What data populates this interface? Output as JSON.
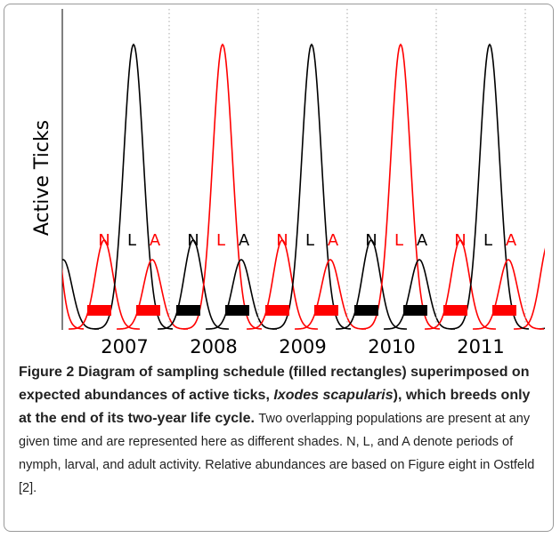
{
  "figure": {
    "y_label": "Active Ticks",
    "years": [
      {
        "year": "2007",
        "labels": [
          {
            "text": "N",
            "color": "#ff0000"
          },
          {
            "text": "L",
            "color": "#000000"
          },
          {
            "text": "A",
            "color": "#ff0000"
          }
        ]
      },
      {
        "year": "2008",
        "labels": [
          {
            "text": "N",
            "color": "#000000"
          },
          {
            "text": "L",
            "color": "#ff0000"
          },
          {
            "text": "A",
            "color": "#000000"
          }
        ]
      },
      {
        "year": "2009",
        "labels": [
          {
            "text": "N",
            "color": "#ff0000"
          },
          {
            "text": "L",
            "color": "#000000"
          },
          {
            "text": "A",
            "color": "#ff0000"
          }
        ]
      },
      {
        "year": "2010",
        "labels": [
          {
            "text": "N",
            "color": "#000000"
          },
          {
            "text": "L",
            "color": "#ff0000"
          },
          {
            "text": "A",
            "color": "#000000"
          }
        ]
      },
      {
        "year": "2011",
        "labels": [
          {
            "text": "N",
            "color": "#ff0000"
          },
          {
            "text": "L",
            "color": "#000000"
          },
          {
            "text": "A",
            "color": "#ff0000"
          }
        ]
      }
    ]
  },
  "caption": {
    "label": "Figure 2",
    "title_before": "Diagram of sampling schedule (filled rectangles) superimposed on expected abundances of active ticks,",
    "title_italic": "Ixodes scapularis",
    "title_after": "), which breeds only at the end of its two-year life cycle.",
    "body": "Two overlapping populations are present at any given time and are represented here as different shades. N, L, and A denote periods of nymph, larval, and adult activity. Relative abundances are based on Figure eight in Ostfeld [2]."
  }
}
